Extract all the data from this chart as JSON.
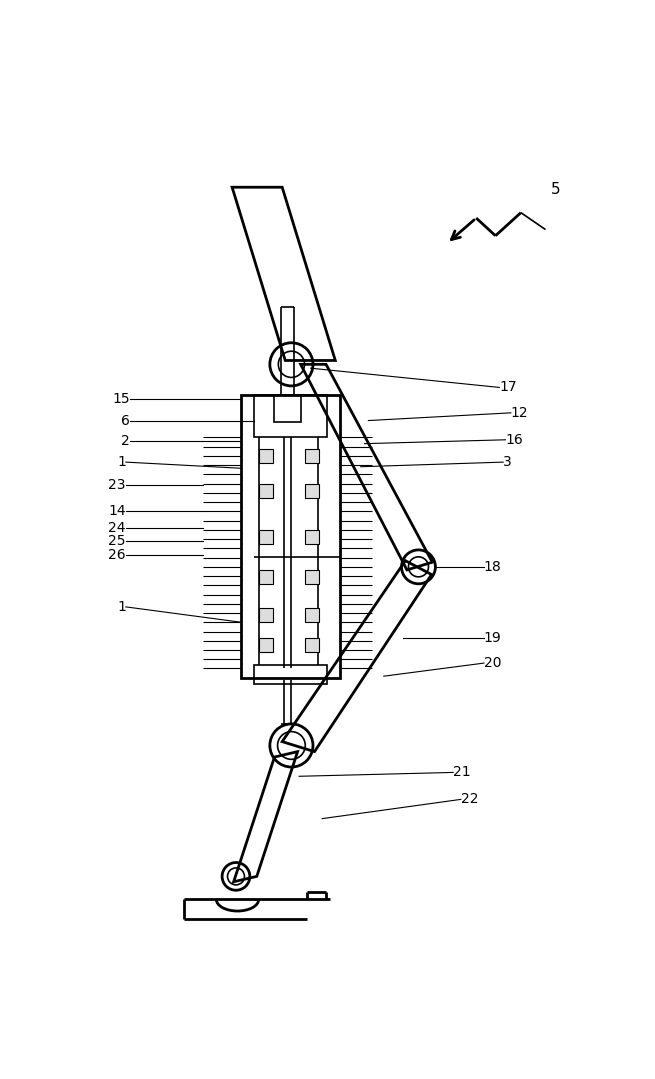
{
  "bg_color": "#ffffff",
  "line_color": "#000000",
  "lw": 1.2,
  "tlw": 2.0,
  "fig_width": 6.55,
  "fig_height": 10.79
}
